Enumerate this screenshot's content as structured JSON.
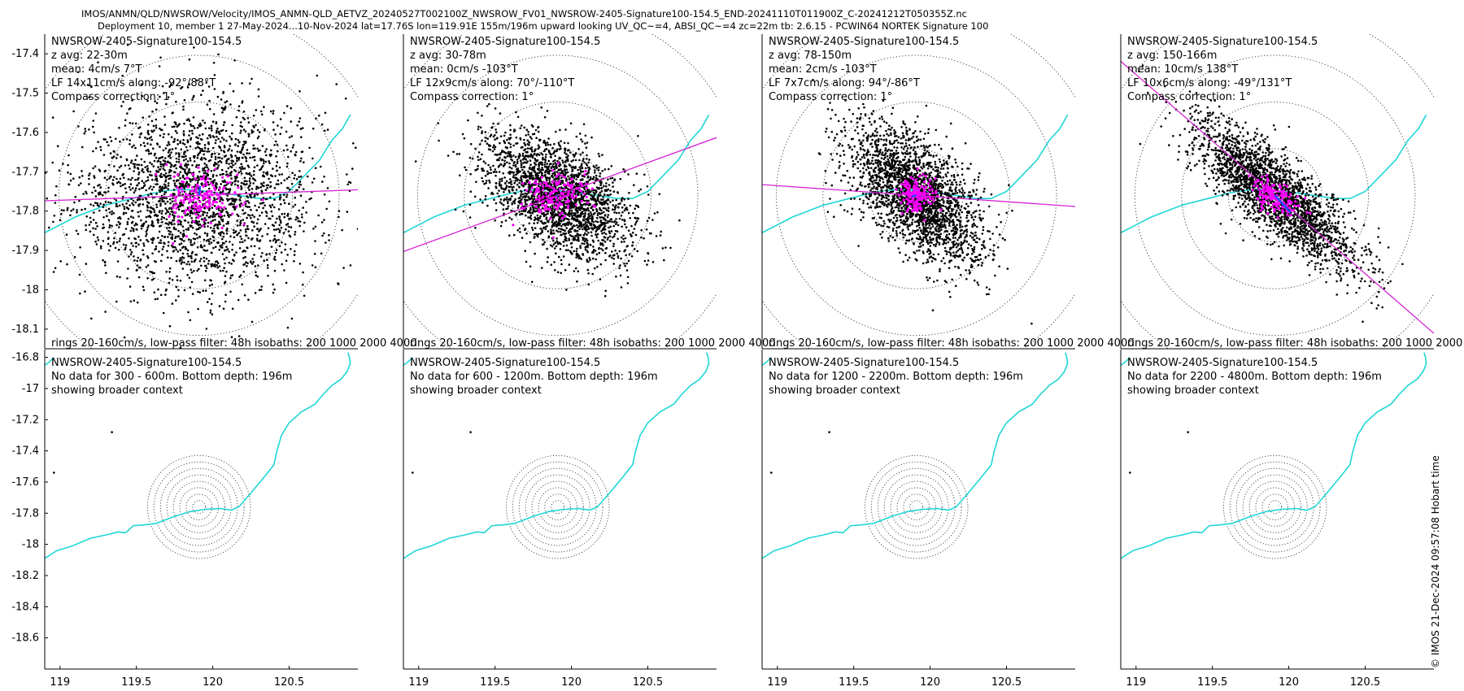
{
  "title_lines": [
    "IMOS/ANMN/QLD/NWSROW/Velocity/IMOS_ANMN-QLD_AETVZ_20240527T002100Z_NWSROW_FV01_NWSROW-2405-Signature100-154.5_END-20241110T011900Z_C-20241212T050355Z.nc",
    "Deployment 10, member 1 27-May-2024...10-Nov-2024 lat=17.76S lon=119.91E 155m/196m upward looking UV_QC~=4, ABSI_QC~=4 zc=22m tb: 2.6.15 - PCWIN64 NORTEK Signature 100"
  ],
  "copyright": "© IMOS 21-Dec-2024 09:57:08 Hobart time",
  "colors": {
    "isobath": "#1fd6d6",
    "axis_line": "#d424d4",
    "points": "#000000",
    "lowpass": "#ff00ff",
    "mean_arrow": "#1f4fff",
    "rings": "#333333"
  },
  "chart_data": [
    {
      "type": "scatter",
      "panel": "top-1",
      "instrument": "NWSROW-2405-Signature100-154.5",
      "annotation": [
        "NWSROW-2405-Signature100-154.5",
        "z avg: 22-30m",
        "mean: 4cm/s 7°T",
        "LF 14x11cm/s along: -92°/88°T",
        "Compass correction: 1°"
      ],
      "footer": "rings 20-160cm/s, low-pass filter: 48h isobaths: 200 1000  2000 4000",
      "xlim": [
        118.9,
        120.95
      ],
      "ylim": [
        -18.15,
        -17.35
      ],
      "yticks": [
        -17.4,
        -17.5,
        -17.6,
        -17.7,
        -17.8,
        -17.9,
        -18,
        -18.1
      ],
      "ytick_labels": [
        "-17.4",
        "-17.5",
        "-17.6",
        "-17.7",
        "-17.8",
        "-17.9",
        "-18",
        "-18.1"
      ],
      "center": [
        119.91,
        -17.76
      ],
      "rings_speed_cm_s": [
        20,
        40,
        60,
        80,
        100,
        120,
        140,
        160
      ],
      "ring_max_radius_deg": 0.95,
      "mean_speed_cm_s": 4,
      "mean_dir_degT": 7,
      "scatter_major_cm_s": 52,
      "scatter_minor_cm_s": 40,
      "scatter_major_dir_degT": 88,
      "lf_major_cm_s": 14,
      "lf_minor_cm_s": 11,
      "axis_dir_degT": 88,
      "axis_line_half_length_deg": 0.82
    },
    {
      "type": "scatter",
      "panel": "top-2",
      "instrument": "NWSROW-2405-Signature100-154.5",
      "annotation": [
        "NWSROW-2405-Signature100-154.5",
        "z avg: 30-78m",
        "mean: 0cm/s -103°T",
        "LF 12x9cm/s along: 70°/-110°T",
        "Compass correction: 1°"
      ],
      "footer": "rings 20-160cm/s, low-pass filter: 48h isobaths: 200 1000  2000 4000",
      "xlim": [
        118.9,
        120.95
      ],
      "ylim": [
        -18.15,
        -17.35
      ],
      "center": [
        119.91,
        -17.76
      ],
      "rings_speed_cm_s": [
        20,
        40,
        60,
        80,
        100,
        120,
        140,
        160
      ],
      "ring_max_radius_deg": 0.95,
      "mean_speed_cm_s": 0,
      "mean_dir_degT": -103,
      "scatter_major_cm_s": 36,
      "scatter_minor_cm_s": 20,
      "scatter_major_dir_degT": 125,
      "lf_major_cm_s": 12,
      "lf_minor_cm_s": 9,
      "axis_dir_degT": 70,
      "axis_line_half_length_deg": 0.72
    },
    {
      "type": "scatter",
      "panel": "top-3",
      "instrument": "NWSROW-2405-Signature100-154.5",
      "annotation": [
        "NWSROW-2405-Signature100-154.5",
        "z avg: 78-150m",
        "mean: 2cm/s -103°T",
        "LF 7x7cm/s along: 94°/-86°T",
        "Compass correction: 1°"
      ],
      "footer": "rings 20-160cm/s, low-pass filter: 48h isobaths: 200 1000  2000 4000",
      "xlim": [
        118.9,
        120.95
      ],
      "ylim": [
        -18.15,
        -17.35
      ],
      "center": [
        119.91,
        -17.76
      ],
      "rings_speed_cm_s": [
        20,
        40,
        60,
        80,
        100,
        120,
        140,
        160
      ],
      "ring_max_radius_deg": 0.95,
      "mean_speed_cm_s": 2,
      "mean_dir_degT": -103,
      "scatter_major_cm_s": 36,
      "scatter_minor_cm_s": 19,
      "scatter_major_dir_degT": 135,
      "lf_major_cm_s": 7,
      "lf_minor_cm_s": 7,
      "axis_dir_degT": 94,
      "axis_line_half_length_deg": 0.82
    },
    {
      "type": "scatter",
      "panel": "top-4",
      "instrument": "NWSROW-2405-Signature100-154.5",
      "annotation": [
        "NWSROW-2405-Signature100-154.5",
        "z avg: 150-166m",
        "mean: 10cm/s 138°T",
        "LF 10x6cm/s along: -49°/131°T",
        "Compass correction: 1°"
      ],
      "footer": "rings 20-160cm/s, low-pass filter: 48h isobaths: 200 1000  2000 4000",
      "xlim": [
        118.9,
        120.95
      ],
      "ylim": [
        -18.15,
        -17.35
      ],
      "center": [
        119.91,
        -17.76
      ],
      "rings_speed_cm_s": [
        20,
        40,
        60,
        80,
        100,
        120,
        140,
        160
      ],
      "ring_max_radius_deg": 0.95,
      "mean_speed_cm_s": 10,
      "mean_dir_degT": 138,
      "scatter_major_cm_s": 44,
      "scatter_minor_cm_s": 14,
      "scatter_major_dir_degT": 131,
      "lf_major_cm_s": 10,
      "lf_minor_cm_s": 6,
      "axis_dir_degT": -49,
      "axis_line_half_length_deg": 0.76
    },
    {
      "type": "scatter",
      "panel": "bottom-1",
      "annotation": [
        "NWSROW-2405-Signature100-154.5",
        "No data for 300 - 600m. Bottom depth: 196m",
        "showing broader context"
      ],
      "xlim": [
        118.9,
        120.95
      ],
      "ylim": [
        -18.8,
        -16.75
      ],
      "xticks": [
        119,
        119.5,
        120,
        120.5
      ],
      "xtick_labels": [
        "119",
        "119.5",
        "120",
        "120.5"
      ],
      "yticks": [
        -16.8,
        -17,
        -17.2,
        -17.4,
        -17.6,
        -17.8,
        -18,
        -18.2,
        -18.4,
        -18.6
      ],
      "ytick_labels": [
        "-16.8",
        "-17",
        "-17.2",
        "-17.4",
        "-17.6",
        "-17.8",
        "-18",
        "-18.2",
        "-18.4",
        "-18.6"
      ],
      "center": [
        119.91,
        -17.76
      ],
      "ring_count": 8,
      "ring_max_radius_deg": 0.33,
      "dots": [
        [
          119.34,
          -17.28
        ],
        [
          118.96,
          -17.54
        ]
      ]
    },
    {
      "type": "scatter",
      "panel": "bottom-2",
      "annotation": [
        "NWSROW-2405-Signature100-154.5",
        "No data for 600 - 1200m. Bottom depth: 196m",
        "showing broader context"
      ],
      "xlim": [
        118.9,
        120.95
      ],
      "ylim": [
        -18.8,
        -16.75
      ],
      "xticks": [
        119,
        119.5,
        120,
        120.5
      ],
      "xtick_labels": [
        "119",
        "119.5",
        "120",
        "120.5"
      ],
      "center": [
        119.91,
        -17.76
      ],
      "ring_count": 8,
      "ring_max_radius_deg": 0.33,
      "dots": [
        [
          119.34,
          -17.28
        ],
        [
          118.96,
          -17.54
        ]
      ]
    },
    {
      "type": "scatter",
      "panel": "bottom-3",
      "annotation": [
        "NWSROW-2405-Signature100-154.5",
        "No data for 1200 - 2200m. Bottom depth: 196m",
        "showing broader context"
      ],
      "xlim": [
        118.9,
        120.95
      ],
      "ylim": [
        -18.8,
        -16.75
      ],
      "xticks": [
        119,
        119.5,
        120,
        120.5
      ],
      "xtick_labels": [
        "119",
        "119.5",
        "120",
        "120.5"
      ],
      "center": [
        119.91,
        -17.76
      ],
      "ring_count": 8,
      "ring_max_radius_deg": 0.33,
      "dots": [
        [
          119.34,
          -17.28
        ],
        [
          118.96,
          -17.54
        ]
      ]
    },
    {
      "type": "scatter",
      "panel": "bottom-4",
      "annotation": [
        "NWSROW-2405-Signature100-154.5",
        "No data for 2200 - 4800m. Bottom depth: 196m",
        "showing broader context"
      ],
      "xlim": [
        118.9,
        120.95
      ],
      "ylim": [
        -18.8,
        -16.75
      ],
      "xticks": [
        119,
        119.5,
        120,
        120.5
      ],
      "xtick_labels": [
        "119",
        "119.5",
        "120",
        "120.5"
      ],
      "center": [
        119.91,
        -17.76
      ],
      "ring_count": 8,
      "ring_max_radius_deg": 0.33,
      "dots": [
        [
          119.34,
          -17.28
        ],
        [
          118.96,
          -17.54
        ]
      ]
    }
  ],
  "isobath_top": [
    [
      118.9,
      -17.855
    ],
    [
      119.1,
      -17.815
    ],
    [
      119.3,
      -17.785
    ],
    [
      119.5,
      -17.765
    ],
    [
      119.6,
      -17.755
    ],
    [
      119.7,
      -17.748
    ],
    [
      119.8,
      -17.745
    ],
    [
      119.9,
      -17.747
    ],
    [
      120.0,
      -17.752
    ],
    [
      120.1,
      -17.756
    ],
    [
      120.2,
      -17.762
    ],
    [
      120.3,
      -17.768
    ],
    [
      120.4,
      -17.768
    ],
    [
      120.5,
      -17.75
    ],
    [
      120.6,
      -17.71
    ],
    [
      120.7,
      -17.67
    ],
    [
      120.78,
      -17.62
    ],
    [
      120.85,
      -17.59
    ],
    [
      120.9,
      -17.555
    ]
  ],
  "isobath_bottom": [
    [
      118.9,
      -18.09
    ],
    [
      118.98,
      -18.04
    ],
    [
      119.08,
      -18.01
    ],
    [
      119.2,
      -17.96
    ],
    [
      119.3,
      -17.94
    ],
    [
      119.38,
      -17.92
    ],
    [
      119.43,
      -17.925
    ],
    [
      119.48,
      -17.88
    ],
    [
      119.55,
      -17.875
    ],
    [
      119.63,
      -17.865
    ],
    [
      119.75,
      -17.82
    ],
    [
      119.85,
      -17.79
    ],
    [
      119.95,
      -17.775
    ],
    [
      120.05,
      -17.77
    ],
    [
      120.12,
      -17.78
    ],
    [
      120.17,
      -17.76
    ],
    [
      120.25,
      -17.67
    ],
    [
      120.33,
      -17.575
    ],
    [
      120.4,
      -17.49
    ],
    [
      120.42,
      -17.4
    ],
    [
      120.45,
      -17.3
    ],
    [
      120.5,
      -17.22
    ],
    [
      120.58,
      -17.15
    ],
    [
      120.67,
      -17.1
    ],
    [
      120.72,
      -17.04
    ],
    [
      120.78,
      -16.98
    ],
    [
      120.84,
      -16.94
    ],
    [
      120.88,
      -16.89
    ],
    [
      120.9,
      -16.84
    ],
    [
      120.895,
      -16.8
    ],
    [
      120.885,
      -16.77
    ]
  ],
  "isobath_bottom_edge": [
    [
      118.9,
      -16.85
    ],
    [
      118.93,
      -16.83
    ],
    [
      118.96,
      -16.8
    ]
  ]
}
